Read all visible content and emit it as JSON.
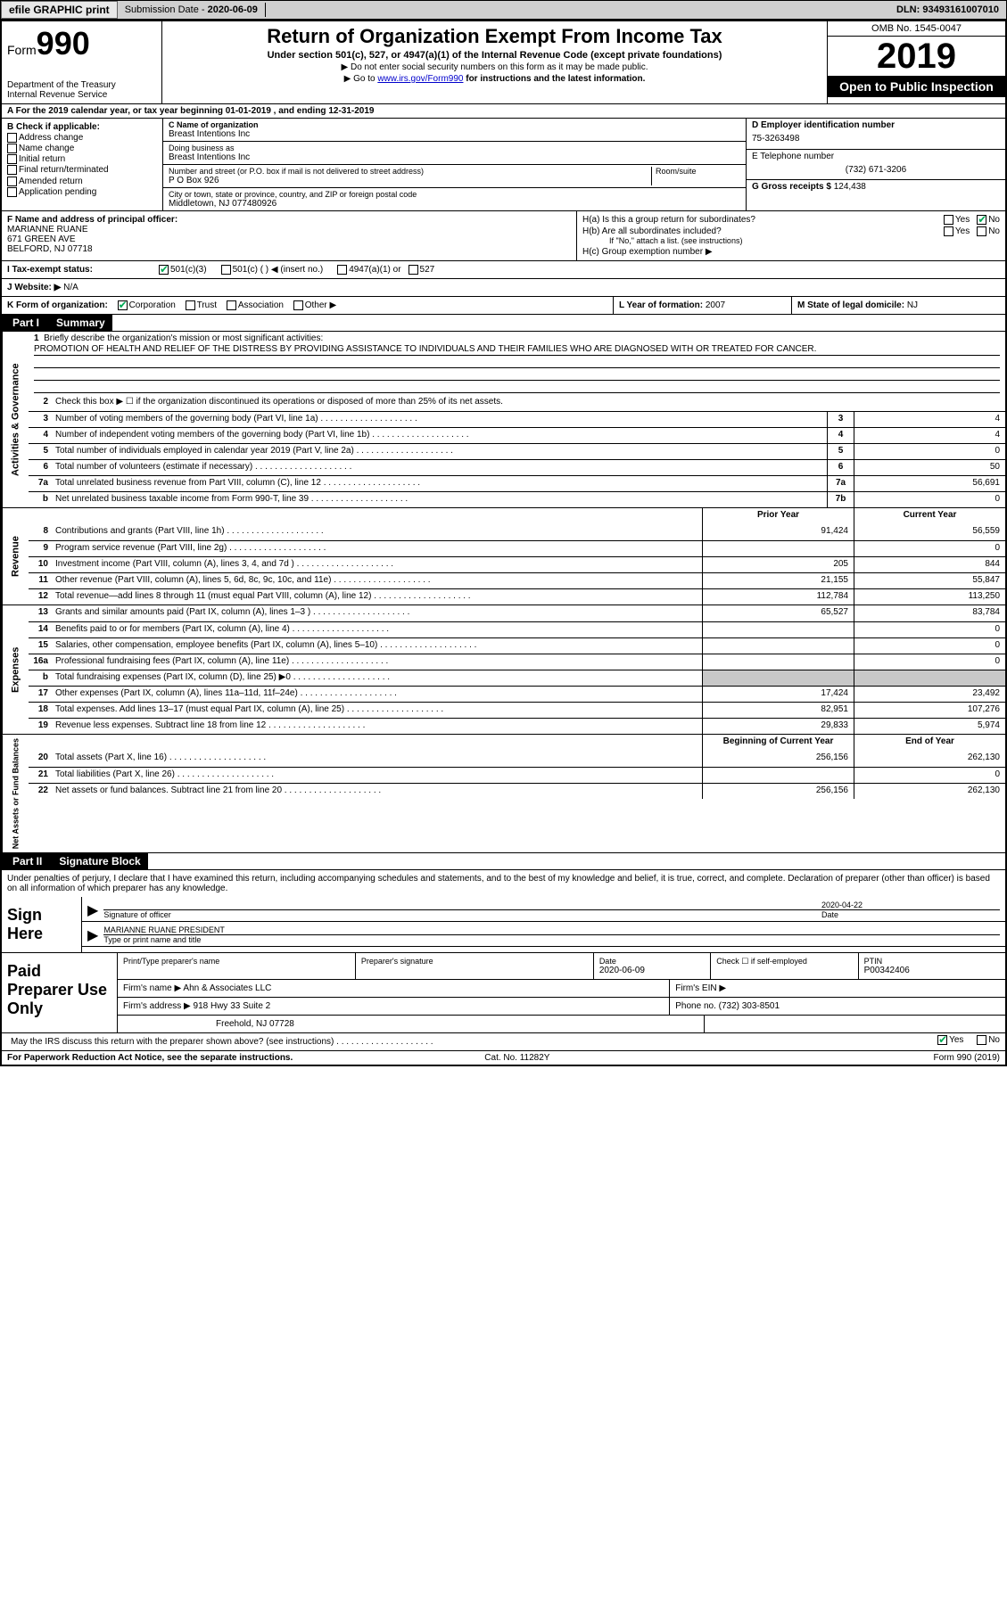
{
  "topbar": {
    "efile": "efile GRAPHIC print",
    "submission_label": "Submission Date - ",
    "submission_date": "2020-06-09",
    "dln_label": "DLN: ",
    "dln": "93493161007010"
  },
  "header": {
    "form_prefix": "Form",
    "form_number": "990",
    "dept": "Department of the Treasury\nInternal Revenue Service",
    "title": "Return of Organization Exempt From Income Tax",
    "sub1": "Under section 501(c), 527, or 4947(a)(1) of the Internal Revenue Code (except private foundations)",
    "sub2": "▶ Do not enter social security numbers on this form as it may be made public.",
    "sub3_pre": "▶ Go to ",
    "sub3_link": "www.irs.gov/Form990",
    "sub3_post": " for instructions and the latest information.",
    "omb": "OMB No. 1545-0047",
    "year": "2019",
    "o2p": "Open to Public Inspection"
  },
  "row_a": "A For the 2019 calendar year, or tax year beginning 01-01-2019    , and ending 12-31-2019",
  "col_b": {
    "title": "B Check if applicable:",
    "opts": [
      "Address change",
      "Name change",
      "Initial return",
      "Final return/terminated",
      "Amended return",
      "Application pending"
    ]
  },
  "col_c": {
    "name_label": "C Name of organization",
    "name": "Breast Intentions Inc",
    "dba_label": "Doing business as",
    "dba": "Breast Intentions Inc",
    "addr_label": "Number and street (or P.O. box if mail is not delivered to street address)",
    "room_label": "Room/suite",
    "addr": "P O Box 926",
    "city_label": "City or town, state or province, country, and ZIP or foreign postal code",
    "city": "Middletown, NJ  077480926"
  },
  "col_d": {
    "ein_label": "D Employer identification number",
    "ein": "75-3263498",
    "tel_label": "E Telephone number",
    "tel": "(732) 671-3206",
    "gross_label": "G Gross receipts $ ",
    "gross": "124,438"
  },
  "row_f": {
    "label": "F  Name and address of principal officer:",
    "name": "MARIANNE RUANE",
    "addr1": "671 GREEN AVE",
    "addr2": "BELFORD, NJ  07718",
    "ha": "H(a)  Is this a group return for subordinates?",
    "hb": "H(b)  Are all subordinates included?",
    "hb_note": "If \"No,\" attach a list. (see instructions)",
    "hc": "H(c)  Group exemption number ▶",
    "yes": "Yes",
    "no": "No"
  },
  "tax_status": {
    "label": "I  Tax-exempt status:",
    "opt1": "501(c)(3)",
    "opt2": "501(c) (   ) ◀ (insert no.)",
    "opt3": "4947(a)(1) or",
    "opt4": "527"
  },
  "website": {
    "label": "J Website: ▶",
    "val": "N/A"
  },
  "row_k": {
    "k": "K Form of organization:",
    "opts": [
      "Corporation",
      "Trust",
      "Association",
      "Other ▶"
    ],
    "l_label": "L Year of formation: ",
    "l_val": "2007",
    "m_label": "M State of legal domicile: ",
    "m_val": "NJ"
  },
  "part1": {
    "hdr": "Part I",
    "title": "Summary"
  },
  "mission": {
    "num": "1",
    "label": "Briefly describe the organization's mission or most significant activities:",
    "text": "PROMOTION OF HEALTH AND RELIEF OF THE DISTRESS BY PROVIDING ASSISTANCE TO INDIVIDUALS AND THEIR FAMILIES WHO ARE DIAGNOSED WITH OR TREATED FOR CANCER."
  },
  "gov_lines": [
    {
      "n": "2",
      "d": "Check this box ▶ ☐ if the organization discontinued its operations or disposed of more than 25% of its net assets."
    },
    {
      "n": "3",
      "d": "Number of voting members of the governing body (Part VI, line 1a)",
      "box": "3",
      "v": "4"
    },
    {
      "n": "4",
      "d": "Number of independent voting members of the governing body (Part VI, line 1b)",
      "box": "4",
      "v": "4"
    },
    {
      "n": "5",
      "d": "Total number of individuals employed in calendar year 2019 (Part V, line 2a)",
      "box": "5",
      "v": "0"
    },
    {
      "n": "6",
      "d": "Total number of volunteers (estimate if necessary)",
      "box": "6",
      "v": "50"
    },
    {
      "n": "7a",
      "d": "Total unrelated business revenue from Part VIII, column (C), line 12",
      "box": "7a",
      "v": "56,691"
    },
    {
      "n": "b",
      "d": "Net unrelated business taxable income from Form 990-T, line 39",
      "box": "7b",
      "v": "0"
    }
  ],
  "rev_hdr": {
    "prior": "Prior Year",
    "curr": "Current Year"
  },
  "rev_lines": [
    {
      "n": "8",
      "d": "Contributions and grants (Part VIII, line 1h)",
      "p": "91,424",
      "c": "56,559"
    },
    {
      "n": "9",
      "d": "Program service revenue (Part VIII, line 2g)",
      "p": "",
      "c": "0"
    },
    {
      "n": "10",
      "d": "Investment income (Part VIII, column (A), lines 3, 4, and 7d )",
      "p": "205",
      "c": "844"
    },
    {
      "n": "11",
      "d": "Other revenue (Part VIII, column (A), lines 5, 6d, 8c, 9c, 10c, and 11e)",
      "p": "21,155",
      "c": "55,847"
    },
    {
      "n": "12",
      "d": "Total revenue—add lines 8 through 11 (must equal Part VIII, column (A), line 12)",
      "p": "112,784",
      "c": "113,250"
    }
  ],
  "exp_lines": [
    {
      "n": "13",
      "d": "Grants and similar amounts paid (Part IX, column (A), lines 1–3 )",
      "p": "65,527",
      "c": "83,784"
    },
    {
      "n": "14",
      "d": "Benefits paid to or for members (Part IX, column (A), line 4)",
      "p": "",
      "c": "0"
    },
    {
      "n": "15",
      "d": "Salaries, other compensation, employee benefits (Part IX, column (A), lines 5–10)",
      "p": "",
      "c": "0"
    },
    {
      "n": "16a",
      "d": "Professional fundraising fees (Part IX, column (A), line 11e)",
      "p": "",
      "c": "0"
    },
    {
      "n": "b",
      "d": "Total fundraising expenses (Part IX, column (D), line 25) ▶0",
      "shade": true
    },
    {
      "n": "17",
      "d": "Other expenses (Part IX, column (A), lines 11a–11d, 11f–24e)",
      "p": "17,424",
      "c": "23,492"
    },
    {
      "n": "18",
      "d": "Total expenses. Add lines 13–17 (must equal Part IX, column (A), line 25)",
      "p": "82,951",
      "c": "107,276"
    },
    {
      "n": "19",
      "d": "Revenue less expenses. Subtract line 18 from line 12",
      "p": "29,833",
      "c": "5,974"
    }
  ],
  "net_hdr": {
    "beg": "Beginning of Current Year",
    "end": "End of Year"
  },
  "net_lines": [
    {
      "n": "20",
      "d": "Total assets (Part X, line 16)",
      "p": "256,156",
      "c": "262,130"
    },
    {
      "n": "21",
      "d": "Total liabilities (Part X, line 26)",
      "p": "",
      "c": "0"
    },
    {
      "n": "22",
      "d": "Net assets or fund balances. Subtract line 21 from line 20",
      "p": "256,156",
      "c": "262,130"
    }
  ],
  "sidelabels": {
    "gov": "Activities & Governance",
    "rev": "Revenue",
    "exp": "Expenses",
    "net": "Net Assets or Fund Balances"
  },
  "part2": {
    "hdr": "Part II",
    "title": "Signature Block"
  },
  "sig": {
    "penalty": "Under penalties of perjury, I declare that I have examined this return, including accompanying schedules and statements, and to the best of my knowledge and belief, it is true, correct, and complete. Declaration of preparer (other than officer) is based on all information of which preparer has any knowledge.",
    "sign_here": "Sign Here",
    "sig_officer": "Signature of officer",
    "date": "2020-04-22",
    "date_label": "Date",
    "officer_name": "MARIANNE RUANE  PRESIDENT",
    "type_label": "Type or print name and title"
  },
  "paid": {
    "label": "Paid Preparer Use Only",
    "h_name": "Print/Type preparer's name",
    "h_sig": "Preparer's signature",
    "h_date": "Date",
    "date": "2020-06-09",
    "h_check": "Check ☐ if self-employed",
    "h_ptin": "PTIN",
    "ptin": "P00342406",
    "firm_label": "Firm's name    ▶",
    "firm": "Ahn & Associates LLC",
    "ein_label": "Firm's EIN ▶",
    "addr_label": "Firm's address ▶",
    "addr1": "918 Hwy 33 Suite 2",
    "addr2": "Freehold, NJ  07728",
    "phone_label": "Phone no. ",
    "phone": "(732) 303-8501"
  },
  "discuss": {
    "q": "May the IRS discuss this return with the preparer shown above? (see instructions)",
    "yes": "Yes",
    "no": "No"
  },
  "footer": {
    "pra": "For Paperwork Reduction Act Notice, see the separate instructions.",
    "cat": "Cat. No. 11282Y",
    "form": "Form 990 (2019)"
  }
}
